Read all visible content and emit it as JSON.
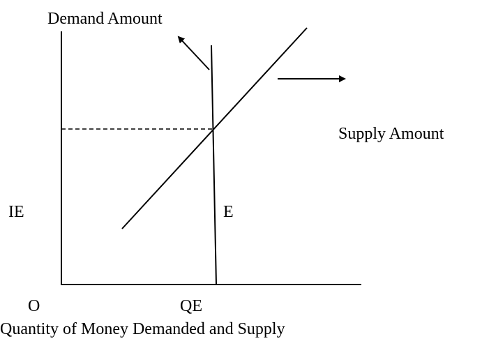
{
  "labels": {
    "demand": "Demand Amount",
    "supply": "Supply Amount",
    "interest": "IE",
    "equilibrium": "E",
    "origin": "O",
    "quantity": "QE",
    "x_axis": "Quantity of Money Demanded and Supply"
  }
}
